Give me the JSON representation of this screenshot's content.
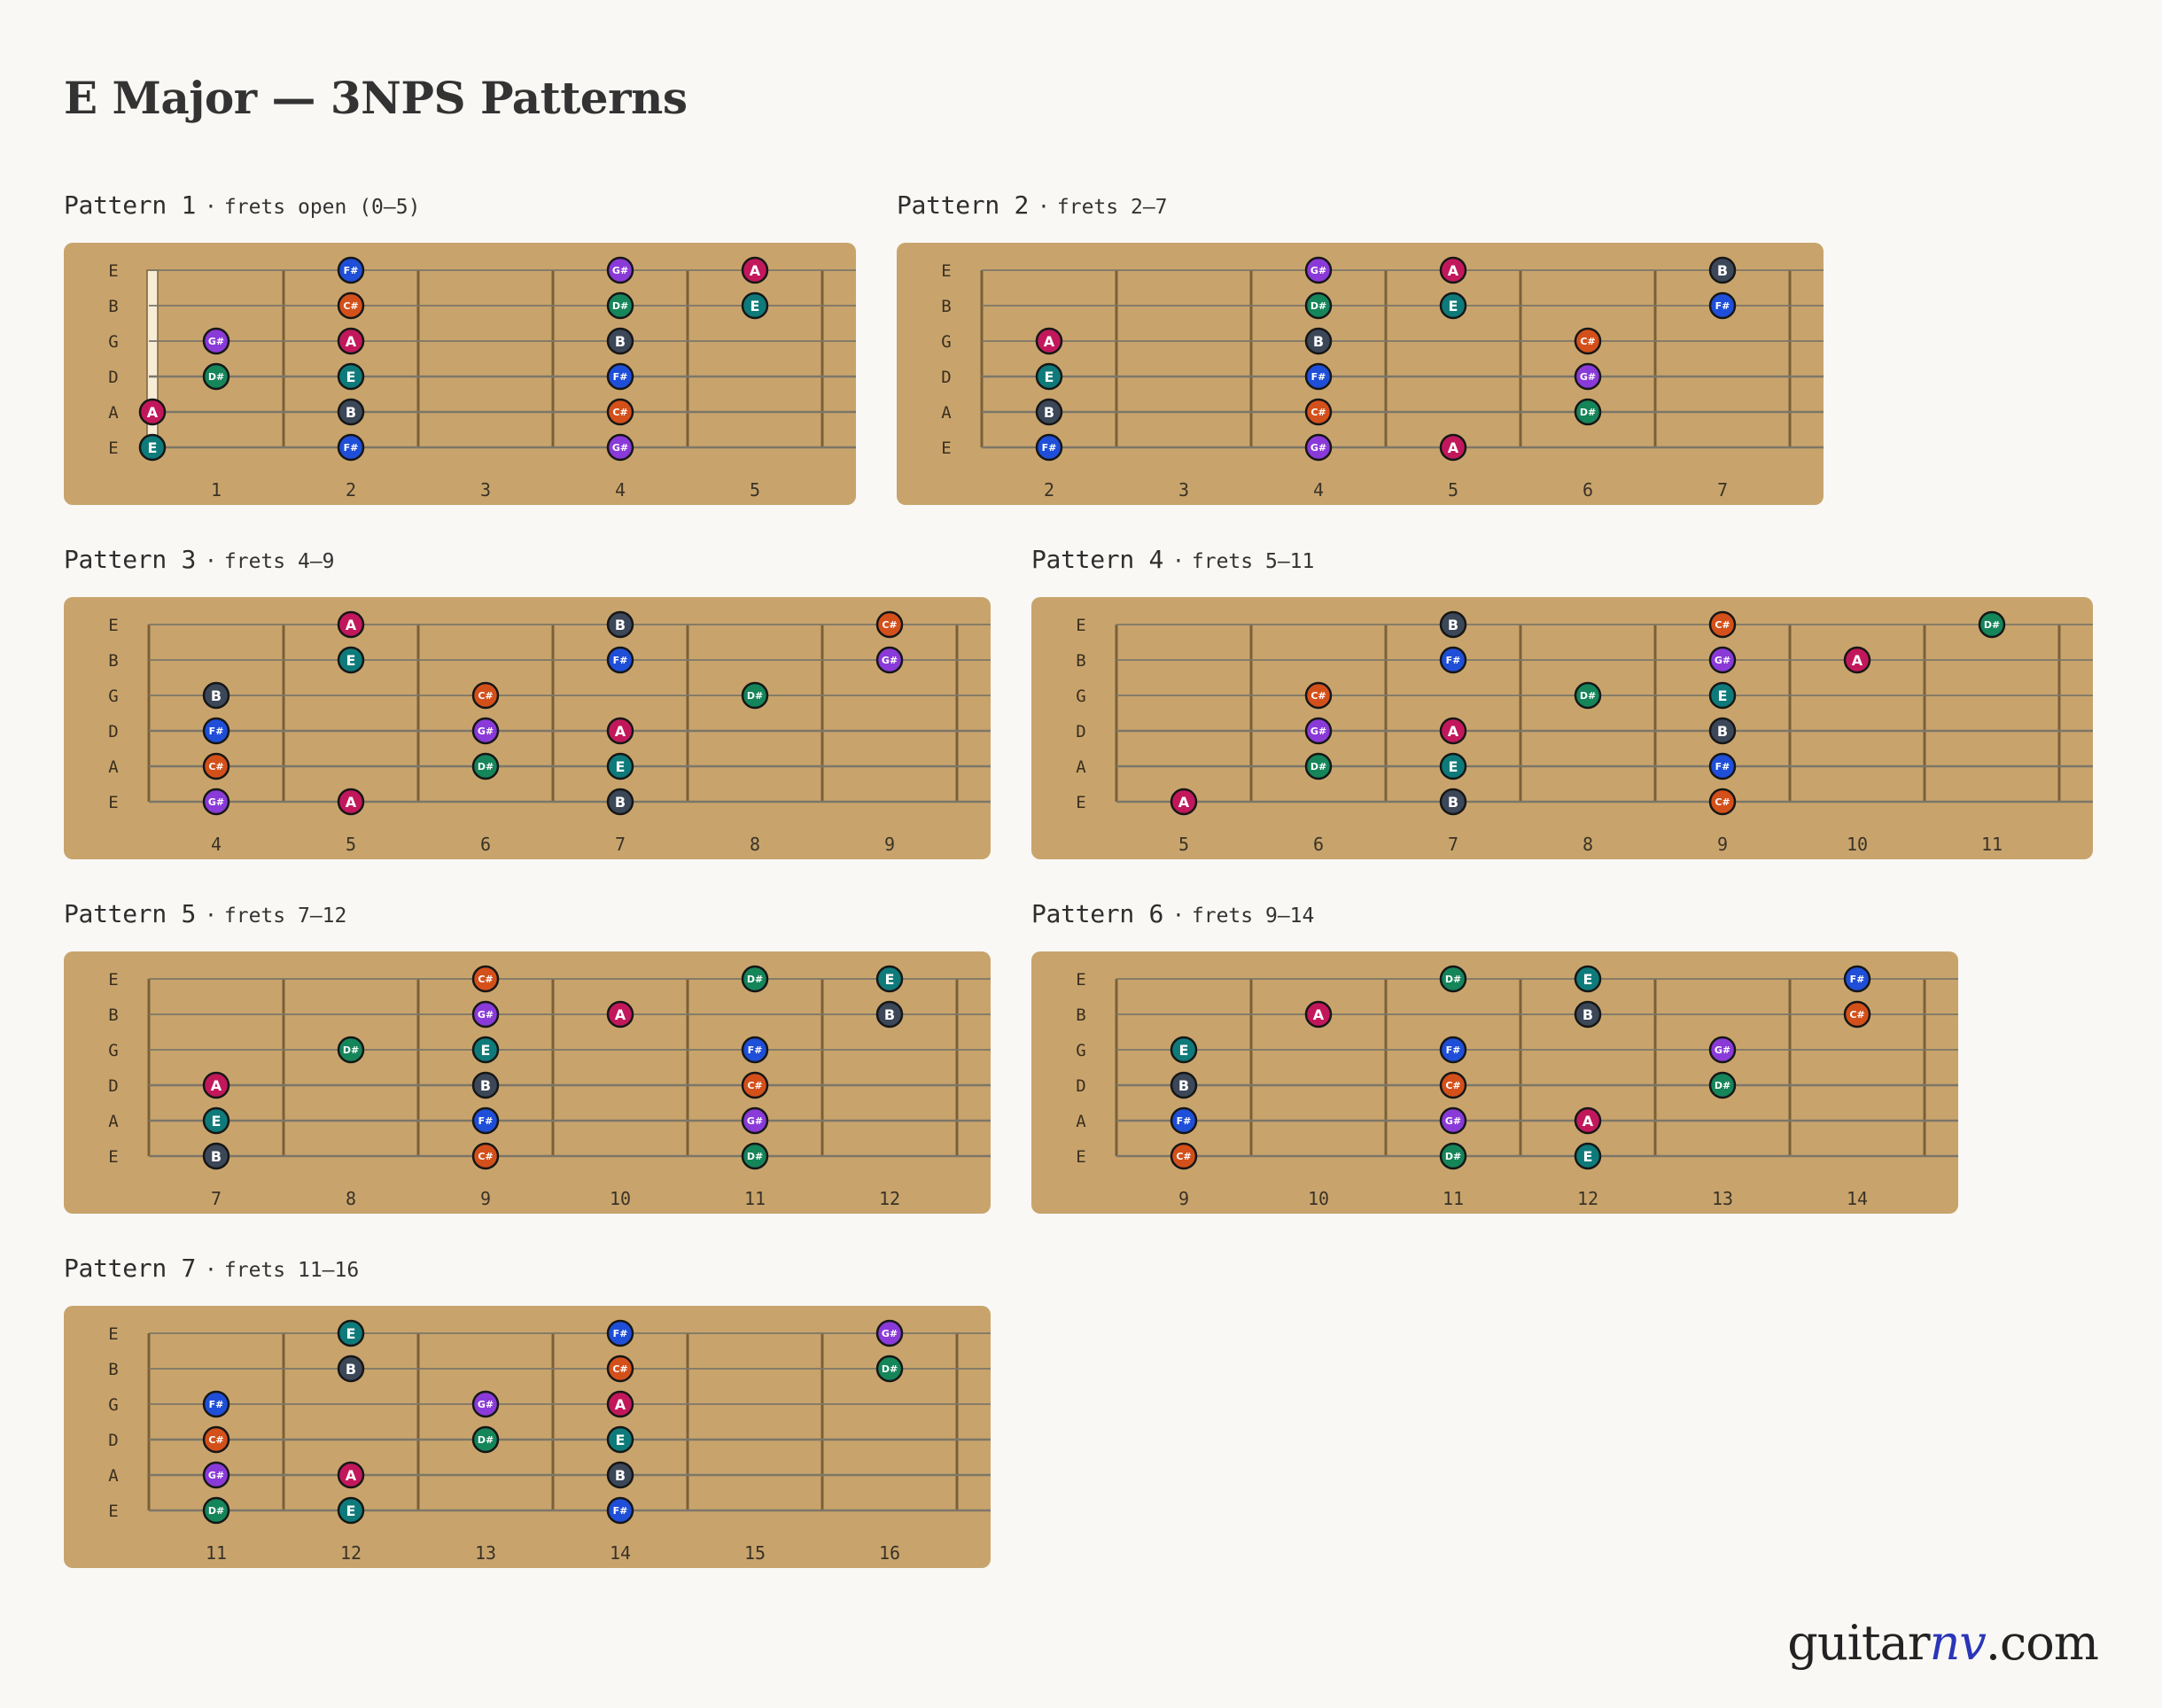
{
  "title": "E Major — 3NPS Patterns",
  "brand": {
    "prefix": "guitar",
    "accent": "nv",
    "suffix": ".com"
  },
  "strings": [
    "E",
    "B",
    "G",
    "D",
    "A",
    "E"
  ],
  "separator": "·",
  "note_colors": {
    "A": "#c2185b",
    "B": "#3c4758",
    "C#": "#d4501a",
    "D#": "#15855a",
    "E": "#0f7a7a",
    "F#": "#1f4fd8",
    "G#": "#8a3ad8"
  },
  "board_color": "#c8a46c",
  "patterns": [
    {
      "name": "Pattern 1",
      "range": "frets open (0–5)",
      "open": true,
      "frets": [
        1,
        2,
        3,
        4,
        5
      ],
      "notes": [
        {
          "s": 0,
          "f": 2,
          "n": "F#"
        },
        {
          "s": 0,
          "f": 4,
          "n": "G#"
        },
        {
          "s": 0,
          "f": 5,
          "n": "A"
        },
        {
          "s": 1,
          "f": 2,
          "n": "C#"
        },
        {
          "s": 1,
          "f": 4,
          "n": "D#"
        },
        {
          "s": 1,
          "f": 5,
          "n": "E"
        },
        {
          "s": 2,
          "f": 1,
          "n": "G#"
        },
        {
          "s": 2,
          "f": 2,
          "n": "A"
        },
        {
          "s": 2,
          "f": 4,
          "n": "B"
        },
        {
          "s": 3,
          "f": 1,
          "n": "D#"
        },
        {
          "s": 3,
          "f": 2,
          "n": "E"
        },
        {
          "s": 3,
          "f": 4,
          "n": "F#"
        },
        {
          "s": 4,
          "f": 0,
          "n": "A"
        },
        {
          "s": 4,
          "f": 2,
          "n": "B"
        },
        {
          "s": 4,
          "f": 4,
          "n": "C#"
        },
        {
          "s": 5,
          "f": 0,
          "n": "E"
        },
        {
          "s": 5,
          "f": 2,
          "n": "F#"
        },
        {
          "s": 5,
          "f": 4,
          "n": "G#"
        }
      ]
    },
    {
      "name": "Pattern 2",
      "range": "frets 2–7",
      "open": false,
      "frets": [
        2,
        3,
        4,
        5,
        6,
        7
      ],
      "notes": [
        {
          "s": 0,
          "f": 4,
          "n": "G#"
        },
        {
          "s": 0,
          "f": 5,
          "n": "A"
        },
        {
          "s": 0,
          "f": 7,
          "n": "B"
        },
        {
          "s": 1,
          "f": 4,
          "n": "D#"
        },
        {
          "s": 1,
          "f": 5,
          "n": "E"
        },
        {
          "s": 1,
          "f": 7,
          "n": "F#"
        },
        {
          "s": 2,
          "f": 2,
          "n": "A"
        },
        {
          "s": 2,
          "f": 4,
          "n": "B"
        },
        {
          "s": 2,
          "f": 6,
          "n": "C#"
        },
        {
          "s": 3,
          "f": 2,
          "n": "E"
        },
        {
          "s": 3,
          "f": 4,
          "n": "F#"
        },
        {
          "s": 3,
          "f": 6,
          "n": "G#"
        },
        {
          "s": 4,
          "f": 2,
          "n": "B"
        },
        {
          "s": 4,
          "f": 4,
          "n": "C#"
        },
        {
          "s": 4,
          "f": 6,
          "n": "D#"
        },
        {
          "s": 5,
          "f": 2,
          "n": "F#"
        },
        {
          "s": 5,
          "f": 4,
          "n": "G#"
        },
        {
          "s": 5,
          "f": 5,
          "n": "A"
        }
      ]
    },
    {
      "name": "Pattern 3",
      "range": "frets 4–9",
      "open": false,
      "frets": [
        4,
        5,
        6,
        7,
        8,
        9
      ],
      "notes": [
        {
          "s": 0,
          "f": 5,
          "n": "A"
        },
        {
          "s": 0,
          "f": 7,
          "n": "B"
        },
        {
          "s": 0,
          "f": 9,
          "n": "C#"
        },
        {
          "s": 1,
          "f": 5,
          "n": "E"
        },
        {
          "s": 1,
          "f": 7,
          "n": "F#"
        },
        {
          "s": 1,
          "f": 9,
          "n": "G#"
        },
        {
          "s": 2,
          "f": 4,
          "n": "B"
        },
        {
          "s": 2,
          "f": 6,
          "n": "C#"
        },
        {
          "s": 2,
          "f": 8,
          "n": "D#"
        },
        {
          "s": 3,
          "f": 4,
          "n": "F#"
        },
        {
          "s": 3,
          "f": 6,
          "n": "G#"
        },
        {
          "s": 3,
          "f": 7,
          "n": "A"
        },
        {
          "s": 4,
          "f": 4,
          "n": "C#"
        },
        {
          "s": 4,
          "f": 6,
          "n": "D#"
        },
        {
          "s": 4,
          "f": 7,
          "n": "E"
        },
        {
          "s": 5,
          "f": 4,
          "n": "G#"
        },
        {
          "s": 5,
          "f": 5,
          "n": "A"
        },
        {
          "s": 5,
          "f": 7,
          "n": "B"
        }
      ]
    },
    {
      "name": "Pattern 4",
      "range": "frets 5–11",
      "open": false,
      "frets": [
        5,
        6,
        7,
        8,
        9,
        10,
        11
      ],
      "notes": [
        {
          "s": 0,
          "f": 7,
          "n": "B"
        },
        {
          "s": 0,
          "f": 9,
          "n": "C#"
        },
        {
          "s": 0,
          "f": 11,
          "n": "D#"
        },
        {
          "s": 1,
          "f": 7,
          "n": "F#"
        },
        {
          "s": 1,
          "f": 9,
          "n": "G#"
        },
        {
          "s": 1,
          "f": 10,
          "n": "A"
        },
        {
          "s": 2,
          "f": 6,
          "n": "C#"
        },
        {
          "s": 2,
          "f": 8,
          "n": "D#"
        },
        {
          "s": 2,
          "f": 9,
          "n": "E"
        },
        {
          "s": 3,
          "f": 6,
          "n": "G#"
        },
        {
          "s": 3,
          "f": 7,
          "n": "A"
        },
        {
          "s": 3,
          "f": 9,
          "n": "B"
        },
        {
          "s": 4,
          "f": 6,
          "n": "D#"
        },
        {
          "s": 4,
          "f": 7,
          "n": "E"
        },
        {
          "s": 4,
          "f": 9,
          "n": "F#"
        },
        {
          "s": 5,
          "f": 5,
          "n": "A"
        },
        {
          "s": 5,
          "f": 7,
          "n": "B"
        },
        {
          "s": 5,
          "f": 9,
          "n": "C#"
        }
      ]
    },
    {
      "name": "Pattern 5",
      "range": "frets 7–12",
      "open": false,
      "frets": [
        7,
        8,
        9,
        10,
        11,
        12
      ],
      "notes": [
        {
          "s": 0,
          "f": 9,
          "n": "C#"
        },
        {
          "s": 0,
          "f": 11,
          "n": "D#"
        },
        {
          "s": 0,
          "f": 12,
          "n": "E"
        },
        {
          "s": 1,
          "f": 9,
          "n": "G#"
        },
        {
          "s": 1,
          "f": 10,
          "n": "A"
        },
        {
          "s": 1,
          "f": 12,
          "n": "B"
        },
        {
          "s": 2,
          "f": 8,
          "n": "D#"
        },
        {
          "s": 2,
          "f": 9,
          "n": "E"
        },
        {
          "s": 2,
          "f": 11,
          "n": "F#"
        },
        {
          "s": 3,
          "f": 7,
          "n": "A"
        },
        {
          "s": 3,
          "f": 9,
          "n": "B"
        },
        {
          "s": 3,
          "f": 11,
          "n": "C#"
        },
        {
          "s": 4,
          "f": 7,
          "n": "E"
        },
        {
          "s": 4,
          "f": 9,
          "n": "F#"
        },
        {
          "s": 4,
          "f": 11,
          "n": "G#"
        },
        {
          "s": 5,
          "f": 7,
          "n": "B"
        },
        {
          "s": 5,
          "f": 9,
          "n": "C#"
        },
        {
          "s": 5,
          "f": 11,
          "n": "D#"
        }
      ]
    },
    {
      "name": "Pattern 6",
      "range": "frets 9–14",
      "open": false,
      "frets": [
        9,
        10,
        11,
        12,
        13,
        14
      ],
      "notes": [
        {
          "s": 0,
          "f": 11,
          "n": "D#"
        },
        {
          "s": 0,
          "f": 12,
          "n": "E"
        },
        {
          "s": 0,
          "f": 14,
          "n": "F#"
        },
        {
          "s": 1,
          "f": 10,
          "n": "A"
        },
        {
          "s": 1,
          "f": 12,
          "n": "B"
        },
        {
          "s": 1,
          "f": 14,
          "n": "C#"
        },
        {
          "s": 2,
          "f": 9,
          "n": "E"
        },
        {
          "s": 2,
          "f": 11,
          "n": "F#"
        },
        {
          "s": 2,
          "f": 13,
          "n": "G#"
        },
        {
          "s": 3,
          "f": 9,
          "n": "B"
        },
        {
          "s": 3,
          "f": 11,
          "n": "C#"
        },
        {
          "s": 3,
          "f": 13,
          "n": "D#"
        },
        {
          "s": 4,
          "f": 9,
          "n": "F#"
        },
        {
          "s": 4,
          "f": 11,
          "n": "G#"
        },
        {
          "s": 4,
          "f": 12,
          "n": "A"
        },
        {
          "s": 5,
          "f": 9,
          "n": "C#"
        },
        {
          "s": 5,
          "f": 11,
          "n": "D#"
        },
        {
          "s": 5,
          "f": 12,
          "n": "E"
        }
      ]
    },
    {
      "name": "Pattern 7",
      "range": "frets 11–16",
      "open": false,
      "frets": [
        11,
        12,
        13,
        14,
        15,
        16
      ],
      "notes": [
        {
          "s": 0,
          "f": 12,
          "n": "E"
        },
        {
          "s": 0,
          "f": 14,
          "n": "F#"
        },
        {
          "s": 0,
          "f": 16,
          "n": "G#"
        },
        {
          "s": 1,
          "f": 12,
          "n": "B"
        },
        {
          "s": 1,
          "f": 14,
          "n": "C#"
        },
        {
          "s": 1,
          "f": 16,
          "n": "D#"
        },
        {
          "s": 2,
          "f": 11,
          "n": "F#"
        },
        {
          "s": 2,
          "f": 13,
          "n": "G#"
        },
        {
          "s": 2,
          "f": 14,
          "n": "A"
        },
        {
          "s": 3,
          "f": 11,
          "n": "C#"
        },
        {
          "s": 3,
          "f": 13,
          "n": "D#"
        },
        {
          "s": 3,
          "f": 14,
          "n": "E"
        },
        {
          "s": 4,
          "f": 11,
          "n": "G#"
        },
        {
          "s": 4,
          "f": 12,
          "n": "A"
        },
        {
          "s": 4,
          "f": 14,
          "n": "B"
        },
        {
          "s": 5,
          "f": 11,
          "n": "D#"
        },
        {
          "s": 5,
          "f": 12,
          "n": "E"
        },
        {
          "s": 5,
          "f": 14,
          "n": "F#"
        }
      ]
    }
  ]
}
